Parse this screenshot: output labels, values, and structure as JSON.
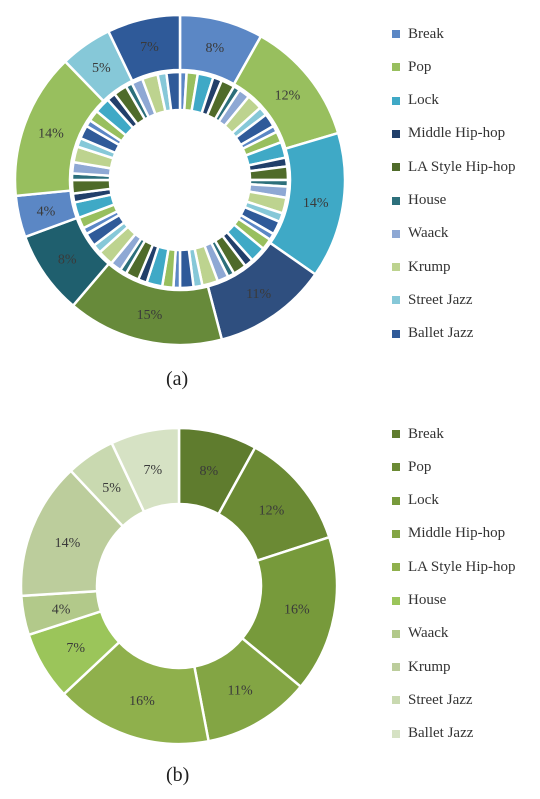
{
  "chart_data": [
    {
      "type": "pie",
      "style": "donut-nested",
      "caption": "(a)",
      "categories": [
        "Break",
        "Pop",
        "Lock",
        "Middle Hip-hop",
        "LA Style Hip-hop",
        "House",
        "Waack",
        "Krump",
        "Street Jazz",
        "Ballet Jazz"
      ],
      "colors": [
        "#5b87c5",
        "#98bf5e",
        "#3fa9c6",
        "#213f6a",
        "#4f6b2a",
        "#2c6f7b",
        "#8ea8d4",
        "#bdd38f",
        "#86c8d8",
        "#2f5a99"
      ],
      "outer": {
        "labels": [
          "8%",
          "12%",
          "14%",
          "11%",
          "15%",
          "8%",
          "4%",
          "14%",
          "5%",
          "7%"
        ],
        "values": [
          8,
          12,
          14,
          11,
          15,
          8,
          4,
          14,
          5,
          7
        ],
        "colors": [
          "#5b87c5",
          "#98bf5e",
          "#3fa9c6",
          "#2f4f7f",
          "#678a3a",
          "#1f5f6e",
          "#5b87c5",
          "#98bf5e",
          "#86c8d8",
          "#2f5a99"
        ]
      },
      "inner_segments": 60
    },
    {
      "type": "pie",
      "style": "donut",
      "caption": "(b)",
      "categories": [
        "Break",
        "Pop",
        "Lock",
        "Middle Hip-hop",
        "LA Style Hip-hop",
        "House",
        "Waack",
        "Krump",
        "Street Jazz",
        "Ballet Jazz"
      ],
      "labels": [
        "8%",
        "12%",
        "16%",
        "11%",
        "16%",
        "7%",
        "4%",
        "14%",
        "5%",
        "7%"
      ],
      "values": [
        8,
        12,
        16,
        11,
        16,
        7,
        4,
        14,
        5,
        7
      ],
      "colors": [
        "#5f7c2e",
        "#6b8a34",
        "#779a3b",
        "#83a544",
        "#8fb04c",
        "#9bc55a",
        "#b2c98a",
        "#bccd9c",
        "#c9d9b0",
        "#d6e2c4"
      ]
    }
  ]
}
